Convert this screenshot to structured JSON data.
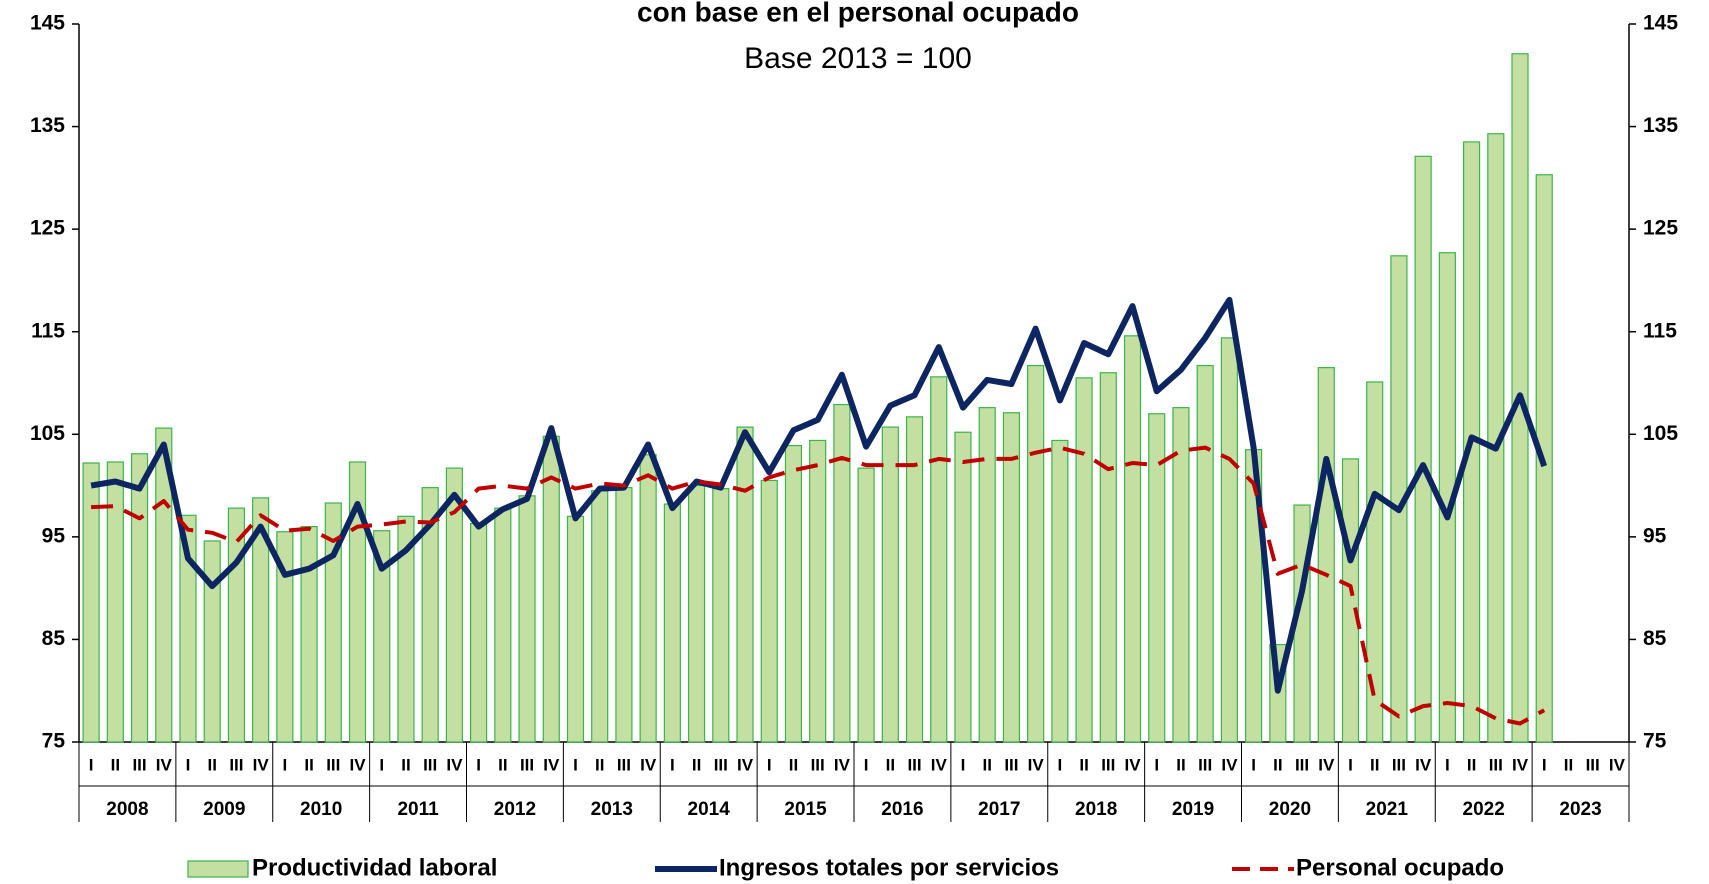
{
  "chart_data": {
    "type": "bar",
    "title": "con base en el personal ocupado",
    "subtitle": "Base 2013 = 100",
    "categories": [
      "I",
      "II",
      "III",
      "IV",
      "I",
      "II",
      "III",
      "IV",
      "I",
      "II",
      "III",
      "IV",
      "I",
      "II",
      "III",
      "IV",
      "I",
      "II",
      "III",
      "IV",
      "I",
      "II",
      "III",
      "IV",
      "I",
      "II",
      "III",
      "IV",
      "I",
      "II",
      "III",
      "IV",
      "I",
      "II",
      "III",
      "IV",
      "I",
      "II",
      "III",
      "IV",
      "I",
      "II",
      "III",
      "IV",
      "I",
      "II",
      "III",
      "IV",
      "I",
      "II",
      "III",
      "IV",
      "I",
      "II",
      "III",
      "IV",
      "I",
      "II",
      "III",
      "IV",
      "I",
      "II",
      "III",
      "IV"
    ],
    "years": [
      "2008",
      "2009",
      "2010",
      "2011",
      "2012",
      "2013",
      "2014",
      "2015",
      "2016",
      "2017",
      "2018",
      "2019",
      "2020",
      "2021",
      "2022",
      "2023"
    ],
    "ylim": [
      75,
      145
    ],
    "yticks": [
      75,
      85,
      95,
      105,
      115,
      125,
      135,
      145
    ],
    "series": [
      {
        "name": "Productividad laboral",
        "type": "bar",
        "color": "#c4dfa2",
        "edge": "#3cb44b",
        "values": [
          102.2,
          102.3,
          103.1,
          105.6,
          97.1,
          94.6,
          97.8,
          98.8,
          95.5,
          96.0,
          98.3,
          102.3,
          95.6,
          97.0,
          99.8,
          101.7,
          96.3,
          97.8,
          99.0,
          104.8,
          97.0,
          99.5,
          99.8,
          103.0,
          98.2,
          100.0,
          99.7,
          105.7,
          100.5,
          103.9,
          104.4,
          107.9,
          101.7,
          105.7,
          106.7,
          110.6,
          105.2,
          107.6,
          107.1,
          111.7,
          104.4,
          110.5,
          111.0,
          114.6,
          107.0,
          107.6,
          111.7,
          114.4,
          103.5,
          84.5,
          98.1,
          111.5,
          102.6,
          110.1,
          122.4,
          132.1,
          122.7,
          133.5,
          134.3,
          142.1,
          130.3,
          null,
          null,
          null
        ]
      },
      {
        "name": "Ingresos totales por servicios",
        "type": "line",
        "color": "#0d2560",
        "dashed": false,
        "values": [
          100.0,
          100.4,
          99.7,
          104.0,
          92.9,
          90.2,
          92.5,
          96.0,
          91.3,
          91.9,
          93.2,
          98.2,
          91.9,
          93.7,
          96.2,
          99.1,
          96.0,
          97.7,
          98.7,
          105.6,
          96.8,
          99.7,
          99.8,
          104.0,
          97.8,
          100.4,
          99.8,
          105.2,
          101.3,
          105.4,
          106.4,
          110.8,
          103.8,
          107.8,
          108.8,
          113.5,
          107.6,
          110.3,
          109.9,
          115.3,
          108.3,
          113.9,
          112.8,
          117.5,
          109.2,
          111.3,
          114.4,
          118.1,
          103.7,
          80.0,
          89.7,
          102.6,
          92.7,
          99.2,
          97.6,
          102.0,
          96.9,
          104.7,
          103.6,
          108.8,
          101.9,
          null,
          null,
          null
        ]
      },
      {
        "name": "Personal ocupado",
        "type": "line",
        "color": "#c00000",
        "dashed": true,
        "values": [
          97.9,
          98.0,
          96.8,
          98.5,
          95.7,
          95.4,
          94.5,
          97.1,
          95.6,
          95.8,
          94.6,
          96.0,
          96.2,
          96.5,
          96.4,
          97.4,
          99.7,
          100.0,
          99.7,
          100.8,
          99.7,
          100.2,
          100.0,
          101.0,
          99.7,
          100.4,
          100.1,
          99.5,
          100.8,
          101.5,
          102.0,
          102.7,
          102.0,
          102.0,
          102.0,
          102.6,
          102.3,
          102.6,
          102.6,
          103.2,
          103.7,
          103.1,
          101.6,
          102.2,
          102.0,
          103.4,
          103.7,
          102.6,
          100.2,
          91.4,
          92.3,
          91.3,
          90.2,
          79.1,
          77.5,
          78.5,
          78.8,
          78.5,
          77.3,
          76.8,
          78.1,
          null,
          null,
          null
        ]
      }
    ]
  }
}
